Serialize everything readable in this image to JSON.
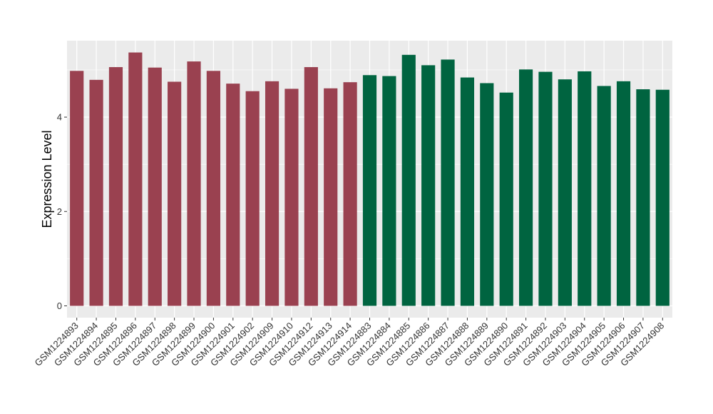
{
  "chart_data": {
    "type": "bar",
    "title": "",
    "xlabel": "",
    "ylabel": "Expression Level",
    "ylim": [
      -0.25,
      5.62
    ],
    "yticks": [
      0,
      2,
      4
    ],
    "grid": true,
    "legend": "none",
    "background_color": "#EBEBEB",
    "series": [
      {
        "color": "#9A4150",
        "categories": [
          "GSM1224893",
          "GSM1224894",
          "GSM1224895",
          "GSM1224896",
          "GSM1224897",
          "GSM1224898",
          "GSM1224899",
          "GSM1224900",
          "GSM1224901",
          "GSM1224902",
          "GSM1224909",
          "GSM1224910",
          "GSM1224912",
          "GSM1224913",
          "GSM1224914"
        ],
        "values": [
          4.98,
          4.79,
          5.06,
          5.37,
          5.05,
          4.75,
          5.18,
          4.98,
          4.71,
          4.55,
          4.76,
          4.6,
          5.06,
          4.61,
          4.74
        ]
      },
      {
        "color": "#006440",
        "categories": [
          "GSM1224883",
          "GSM1224884",
          "GSM1224885",
          "GSM1224886",
          "GSM1224887",
          "GSM1224888",
          "GSM1224889",
          "GSM1224890",
          "GSM1224891",
          "GSM1224892",
          "GSM1224903",
          "GSM1224904",
          "GSM1224905",
          "GSM1224906",
          "GSM1224907",
          "GSM1224908"
        ],
        "values": [
          4.89,
          4.87,
          5.32,
          5.1,
          5.22,
          4.84,
          4.72,
          4.52,
          5.01,
          4.96,
          4.8,
          4.97,
          4.66,
          4.76,
          4.59,
          4.58
        ]
      }
    ]
  }
}
